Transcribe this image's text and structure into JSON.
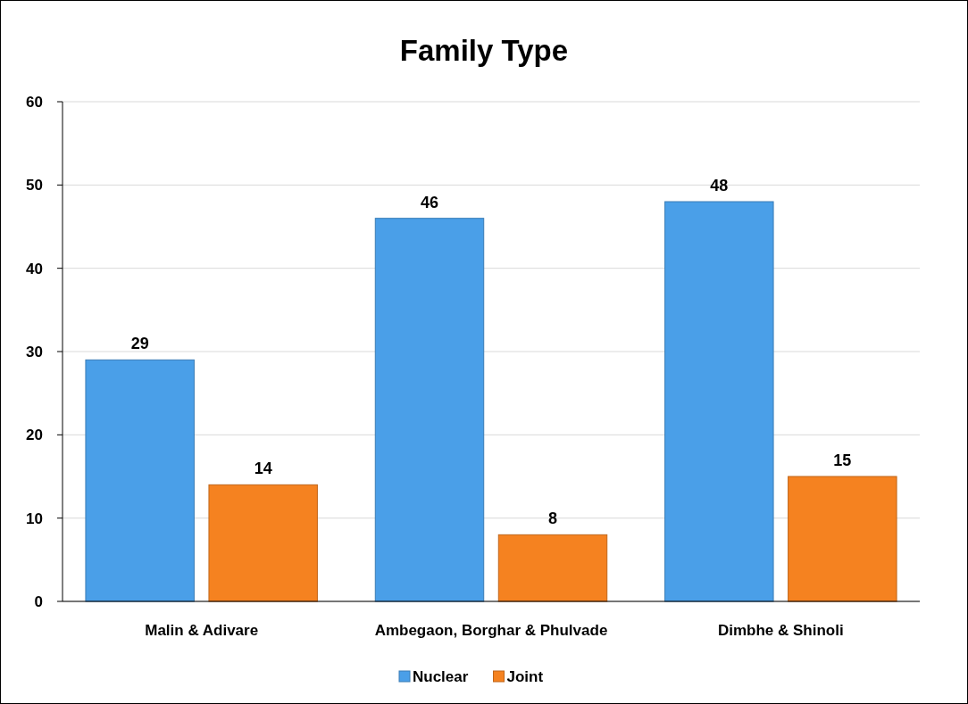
{
  "chart_data": {
    "type": "bar",
    "title": "Family Type",
    "categories": [
      "Malin & Adivare",
      "Ambegaon, Borghar & Phulvade",
      "Dimbhe & Shinoli"
    ],
    "series": [
      {
        "name": "Nuclear",
        "color": "#4a9fe8",
        "values": [
          29,
          46,
          48
        ]
      },
      {
        "name": "Joint",
        "color": "#f58220",
        "values": [
          14,
          8,
          15
        ]
      }
    ],
    "ylim": [
      0,
      60
    ],
    "yticks": [
      0,
      10,
      20,
      30,
      40,
      50,
      60
    ],
    "grid": "y",
    "legend": "bottom",
    "data_labels": true
  }
}
